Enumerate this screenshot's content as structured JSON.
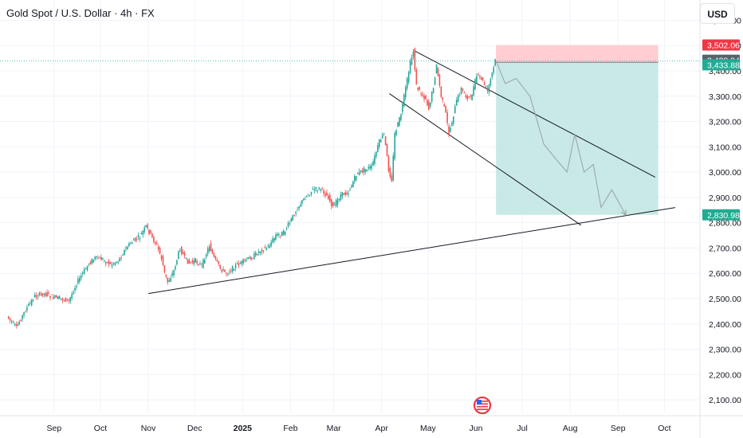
{
  "header": {
    "title": "Gold Spot / U.S. Dollar · 4h · FX",
    "currency_button": "USD"
  },
  "icons": {
    "flag": "us-flag-icon"
  },
  "colors": {
    "bull": "#26a69a",
    "bear": "#ef5350",
    "target_zone": "#b2dfdb",
    "stop_zone": "#ffcdd2",
    "tag_red": "#f23645",
    "tag_gray": "#5d606b",
    "tag_teal": "#22ab94",
    "line": "#131722"
  },
  "chart_data": {
    "type": "line",
    "title": "",
    "ylim": [
      2050,
      3680
    ],
    "y_ticks": [
      3600,
      3500,
      3400,
      3300,
      3200,
      3100,
      3000,
      2900,
      2800,
      2700,
      2600,
      2500,
      2400,
      2300,
      2200,
      2100
    ],
    "y_tick_labels": [
      "3,600.00",
      "3,500.00",
      "3,400.00",
      "3,300.00",
      "3,200.00",
      "3,100.00",
      "3,000.00",
      "2,900.00",
      "2,800.00",
      "2,700.00",
      "2,600.00",
      "2,500.00",
      "2,400.00",
      "2,300.00",
      "2,200.00",
      "2,100.00"
    ],
    "x_ticks": [
      {
        "label": "Sep",
        "date": "2024-09-01",
        "bold": false
      },
      {
        "label": "Oct",
        "date": "2024-10-01",
        "bold": false
      },
      {
        "label": "Nov",
        "date": "2024-11-01",
        "bold": false
      },
      {
        "label": "Dec",
        "date": "2024-12-01",
        "bold": false
      },
      {
        "label": "2025",
        "date": "2025-01-01",
        "bold": true
      },
      {
        "label": "Feb",
        "date": "2025-02-01",
        "bold": false
      },
      {
        "label": "Mar",
        "date": "2025-03-01",
        "bold": false
      },
      {
        "label": "Apr",
        "date": "2025-04-01",
        "bold": false
      },
      {
        "label": "May",
        "date": "2025-05-01",
        "bold": false
      },
      {
        "label": "Jun",
        "date": "2025-06-01",
        "bold": false
      },
      {
        "label": "Jul",
        "date": "2025-07-01",
        "bold": false
      },
      {
        "label": "Aug",
        "date": "2025-08-01",
        "bold": false
      },
      {
        "label": "Sep",
        "date": "2025-09-01",
        "bold": false
      },
      {
        "label": "Oct",
        "date": "2025-10-01",
        "bold": false
      }
    ],
    "series": [
      {
        "kind": "price",
        "points": [
          [
            "2024-08-02",
            2430
          ],
          [
            "2024-08-08",
            2385
          ],
          [
            "2024-08-14",
            2455
          ],
          [
            "2024-08-20",
            2510
          ],
          [
            "2024-08-26",
            2520
          ],
          [
            "2024-09-01",
            2505
          ],
          [
            "2024-09-06",
            2500
          ],
          [
            "2024-09-11",
            2490
          ],
          [
            "2024-09-16",
            2560
          ],
          [
            "2024-09-20",
            2600
          ],
          [
            "2024-09-24",
            2640
          ],
          [
            "2024-09-28",
            2660
          ],
          [
            "2024-10-03",
            2655
          ],
          [
            "2024-10-08",
            2635
          ],
          [
            "2024-10-13",
            2650
          ],
          [
            "2024-10-18",
            2700
          ],
          [
            "2024-10-23",
            2730
          ],
          [
            "2024-10-27",
            2745
          ],
          [
            "2024-10-31",
            2785
          ],
          [
            "2024-11-04",
            2740
          ],
          [
            "2024-11-07",
            2710
          ],
          [
            "2024-11-10",
            2660
          ],
          [
            "2024-11-12",
            2600
          ],
          [
            "2024-11-14",
            2565
          ],
          [
            "2024-11-18",
            2610
          ],
          [
            "2024-11-22",
            2700
          ],
          [
            "2024-11-25",
            2660
          ],
          [
            "2024-11-28",
            2640
          ],
          [
            "2024-12-02",
            2650
          ],
          [
            "2024-12-06",
            2630
          ],
          [
            "2024-12-11",
            2710
          ],
          [
            "2024-12-14",
            2660
          ],
          [
            "2024-12-18",
            2620
          ],
          [
            "2024-12-22",
            2600
          ],
          [
            "2024-12-28",
            2630
          ],
          [
            "2025-01-03",
            2650
          ],
          [
            "2025-01-08",
            2665
          ],
          [
            "2025-01-13",
            2690
          ],
          [
            "2025-01-18",
            2705
          ],
          [
            "2025-01-23",
            2750
          ],
          [
            "2025-01-28",
            2760
          ],
          [
            "2025-02-01",
            2800
          ],
          [
            "2025-02-06",
            2860
          ],
          [
            "2025-02-11",
            2900
          ],
          [
            "2025-02-16",
            2930
          ],
          [
            "2025-02-21",
            2935
          ],
          [
            "2025-02-26",
            2900
          ],
          [
            "2025-03-01",
            2860
          ],
          [
            "2025-03-06",
            2910
          ],
          [
            "2025-03-11",
            2920
          ],
          [
            "2025-03-16",
            2990
          ],
          [
            "2025-03-21",
            3010
          ],
          [
            "2025-03-26",
            3020
          ],
          [
            "2025-03-31",
            3120
          ],
          [
            "2025-04-03",
            3150
          ],
          [
            "2025-04-06",
            3010
          ],
          [
            "2025-04-08",
            2970
          ],
          [
            "2025-04-10",
            3150
          ],
          [
            "2025-04-14",
            3230
          ],
          [
            "2025-04-17",
            3330
          ],
          [
            "2025-04-20",
            3430
          ],
          [
            "2025-04-22",
            3480
          ],
          [
            "2025-04-24",
            3340
          ],
          [
            "2025-04-27",
            3310
          ],
          [
            "2025-04-30",
            3290
          ],
          [
            "2025-05-02",
            3250
          ],
          [
            "2025-05-05",
            3340
          ],
          [
            "2025-05-07",
            3420
          ],
          [
            "2025-05-10",
            3300
          ],
          [
            "2025-05-13",
            3230
          ],
          [
            "2025-05-15",
            3150
          ],
          [
            "2025-05-17",
            3200
          ],
          [
            "2025-05-20",
            3280
          ],
          [
            "2025-05-23",
            3330
          ],
          [
            "2025-05-26",
            3300
          ],
          [
            "2025-05-29",
            3290
          ],
          [
            "2025-06-02",
            3380
          ],
          [
            "2025-06-05",
            3370
          ],
          [
            "2025-06-09",
            3320
          ],
          [
            "2025-06-12",
            3390
          ],
          [
            "2025-06-14",
            3440
          ]
        ]
      },
      {
        "kind": "projection",
        "points": [
          [
            "2025-06-14",
            3440
          ],
          [
            "2025-06-20",
            3350
          ],
          [
            "2025-06-27",
            3370
          ],
          [
            "2025-07-06",
            3300
          ],
          [
            "2025-07-15",
            3110
          ],
          [
            "2025-07-23",
            3050
          ],
          [
            "2025-07-30",
            3000
          ],
          [
            "2025-08-04",
            3150
          ],
          [
            "2025-08-10",
            3000
          ],
          [
            "2025-08-16",
            3030
          ],
          [
            "2025-08-21",
            2860
          ],
          [
            "2025-08-28",
            2930
          ],
          [
            "2025-09-06",
            2830
          ]
        ]
      }
    ],
    "trendlines": [
      {
        "from": [
          "2024-11-01",
          2520
        ],
        "to": [
          "2025-10-08",
          2860
        ]
      },
      {
        "from": [
          "2025-04-22",
          3480
        ],
        "to": [
          "2025-09-25",
          2980
        ]
      },
      {
        "from": [
          "2025-04-06",
          3310
        ],
        "to": [
          "2025-08-08",
          2790
        ]
      }
    ],
    "position": {
      "start": "2025-06-14",
      "end": "2025-09-27",
      "stop": 3502.06,
      "entry": 3433.88,
      "target": 2830.98
    },
    "price_tags": [
      {
        "label": "3,502.06",
        "value": 3502.06,
        "color": "#f23645"
      },
      {
        "label": "3,438.94",
        "value": 3442,
        "color": "#5d606b"
      },
      {
        "label": "3,433.88",
        "value": 3424,
        "color": "#22ab94"
      },
      {
        "label": "2,830.98",
        "value": 2830.98,
        "color": "#22ab94"
      }
    ]
  }
}
